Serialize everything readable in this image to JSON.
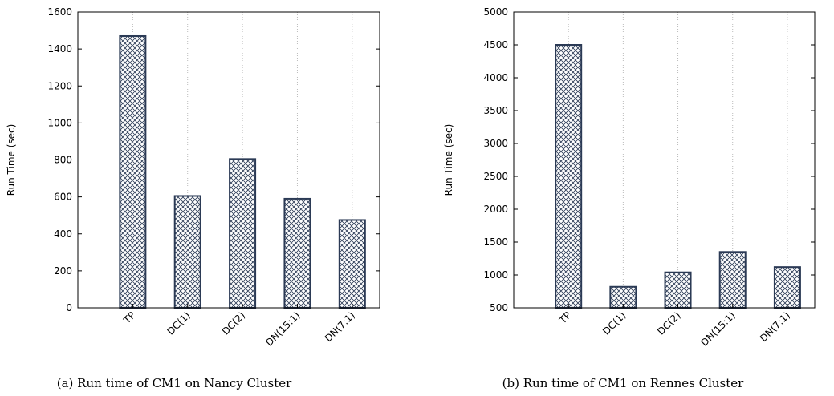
{
  "chart_data": [
    {
      "type": "bar",
      "caption": "(a) Run time of CM1 on Nancy Cluster",
      "y_label": "Run Time (sec)",
      "categories": [
        "TP",
        "DC(1)",
        "DC(2)",
        "DN(15:1)",
        "DN(7:1)"
      ],
      "values": [
        1470,
        605,
        805,
        590,
        475
      ],
      "color": "#2b3a55",
      "ylim": [
        0,
        1600
      ],
      "yticks": [
        0,
        200,
        400,
        600,
        800,
        1000,
        1200,
        1400,
        1600
      ],
      "grid": true
    },
    {
      "type": "bar",
      "caption": "(b) Run time of CM1 on Rennes Cluster",
      "y_label": "Run Time (sec)",
      "categories": [
        "TP",
        "DC(1)",
        "DC(2)",
        "DN(15:1)",
        "DN(7:1)"
      ],
      "values": [
        4500,
        820,
        1040,
        1350,
        1120
      ],
      "color": "#2b3a55",
      "ylim": [
        500,
        5000
      ],
      "yticks": [
        500,
        1000,
        1500,
        2000,
        2500,
        3000,
        3500,
        4000,
        4500,
        5000
      ],
      "grid": true
    }
  ]
}
